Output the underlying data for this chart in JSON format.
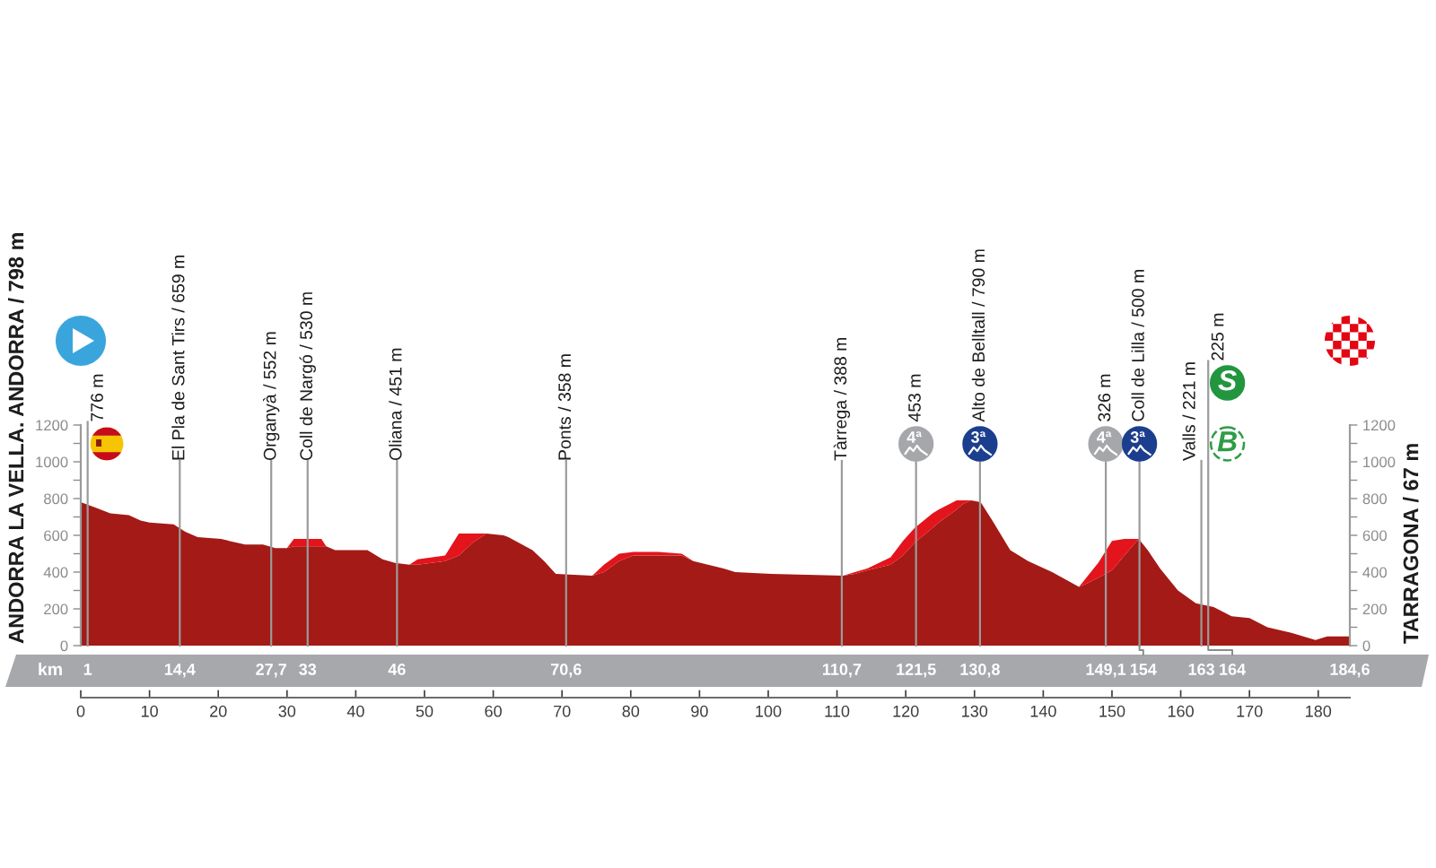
{
  "chart_data": {
    "type": "area",
    "stacked": true,
    "x": [
      0,
      2.2,
      4.3,
      7,
      8.7,
      10,
      13.5,
      15.2,
      17,
      20.4,
      23.9,
      26.5,
      28.3,
      30,
      31,
      35,
      35.7,
      37,
      41.7,
      43.9,
      45.7,
      47.8,
      49,
      53,
      55,
      57,
      59,
      61.5,
      62.2,
      65.7,
      67.4,
      69.1,
      74.4,
      76.1,
      78.3,
      80.4,
      84,
      87.4,
      89.1,
      93.5,
      95.2,
      100.4,
      110.9,
      112.6,
      114.4,
      117.8,
      119.6,
      121.3,
      123.9,
      124.8,
      127.4,
      128.3,
      129.5,
      130.9,
      132.6,
      135.2,
      137.8,
      141.3,
      145.2,
      146.5,
      148,
      150,
      151.8,
      153.9,
      155.2,
      157,
      159.6,
      162.2,
      164.8,
      167.4,
      170,
      172.6,
      176.1,
      179.6,
      181.3,
      184.6
    ],
    "series": [
      {
        "color": "#a31a16",
        "values": [
          780,
          750,
          720,
          710,
          680,
          670,
          660,
          620,
          590,
          580,
          550,
          550,
          530,
          530,
          540,
          540,
          540,
          520,
          520,
          470,
          450,
          440,
          440,
          460,
          490,
          560,
          610,
          600,
          590,
          520,
          460,
          390,
          380,
          400,
          460,
          490,
          490,
          490,
          460,
          420,
          400,
          390,
          380,
          390,
          410,
          440,
          490,
          560,
          640,
          670,
          740,
          770,
          790,
          780,
          680,
          520,
          460,
          400,
          320,
          340,
          370,
          410,
          490,
          580,
          520,
          420,
          300,
          230,
          210,
          160,
          150,
          100,
          70,
          30,
          50,
          50
        ]
      },
      {
        "color": "#e3141c",
        "values": [
          0,
          0,
          0,
          0,
          0,
          0,
          0,
          0,
          0,
          0,
          0,
          0,
          0,
          0,
          40,
          40,
          0,
          0,
          0,
          0,
          0,
          0,
          30,
          30,
          120,
          50,
          0,
          0,
          0,
          0,
          0,
          0,
          0,
          40,
          40,
          20,
          20,
          10,
          0,
          0,
          0,
          0,
          0,
          10,
          10,
          40,
          80,
          80,
          80,
          70,
          50,
          20,
          0,
          0,
          0,
          0,
          0,
          0,
          0,
          40,
          80,
          160,
          90,
          0,
          0,
          0,
          0,
          0,
          0,
          0,
          0,
          0,
          0,
          0,
          0,
          0
        ]
      }
    ],
    "xlim": [
      0,
      184.6
    ],
    "xticks": [
      0,
      10,
      20,
      30,
      40,
      50,
      60,
      70,
      80,
      90,
      100,
      110,
      120,
      130,
      140,
      150,
      160,
      170,
      180
    ],
    "ylim": [
      0,
      1200
    ],
    "yticks": [
      0,
      {
        "value": 100,
        "label": null
      },
      200,
      {
        "value": 300,
        "label": null
      },
      400,
      {
        "value": 500,
        "label": null
      },
      600,
      {
        "value": 700,
        "label": null
      },
      800,
      {
        "value": 900,
        "label": null
      },
      1000,
      {
        "value": 1100,
        "label": null
      },
      1200
    ],
    "y2lim": [
      0,
      1200
    ],
    "y2ticks": [
      0,
      {
        "value": 100,
        "label": null
      },
      200,
      {
        "value": 300,
        "label": null
      },
      400,
      {
        "value": 500,
        "label": null
      },
      600,
      {
        "value": 700,
        "label": null
      },
      800,
      {
        "value": 900,
        "label": null
      },
      1000,
      {
        "value": 1100,
        "label": null
      },
      1200
    ],
    "ref_lines": [
      {
        "axis": "x",
        "value": 1,
        "label": "776 m"
      },
      {
        "axis": "x",
        "value": 14.4,
        "label": "El Pla de Sant Tirs / 659 m"
      },
      {
        "axis": "x",
        "value": 27.7,
        "label": "Organyà / 552 m"
      },
      {
        "axis": "x",
        "value": 33,
        "label": "Coll de Nargó / 530 m"
      },
      {
        "axis": "x",
        "value": 46,
        "label": "Oliana / 451 m"
      },
      {
        "axis": "x",
        "value": 70.6,
        "label": "Ponts / 358 m"
      },
      {
        "axis": "x",
        "value": 110.7,
        "label": "Tàrrega / 388 m"
      },
      {
        "axis": "x",
        "value": 121.5,
        "label": "453 m"
      },
      {
        "axis": "x",
        "value": 130.8,
        "label": "Alto de Belltall / 790 m"
      },
      {
        "axis": "x",
        "value": 149.1,
        "label": "326 m"
      },
      {
        "axis": "x",
        "value": 154,
        "label": "Coll de Lilla / 500 m"
      },
      {
        "axis": "x",
        "value": 163,
        "label": "Valls / 221 m"
      },
      {
        "axis": "x",
        "value": 164,
        "label": "225 m"
      }
    ],
    "annotations": [
      "ANDORRA LA VELLA. ANDORRA / 798 m",
      "TARRAGONA / 67 m",
      "4ª",
      "3ª",
      "4ª",
      "3ª",
      "B",
      "S",
      "km",
      "1",
      "14,4",
      "27,7",
      "33",
      "46",
      "70,6",
      "110,7",
      "121,5",
      "130,8",
      "149,1",
      "154",
      "163",
      "164",
      "184,6"
    ]
  }
}
